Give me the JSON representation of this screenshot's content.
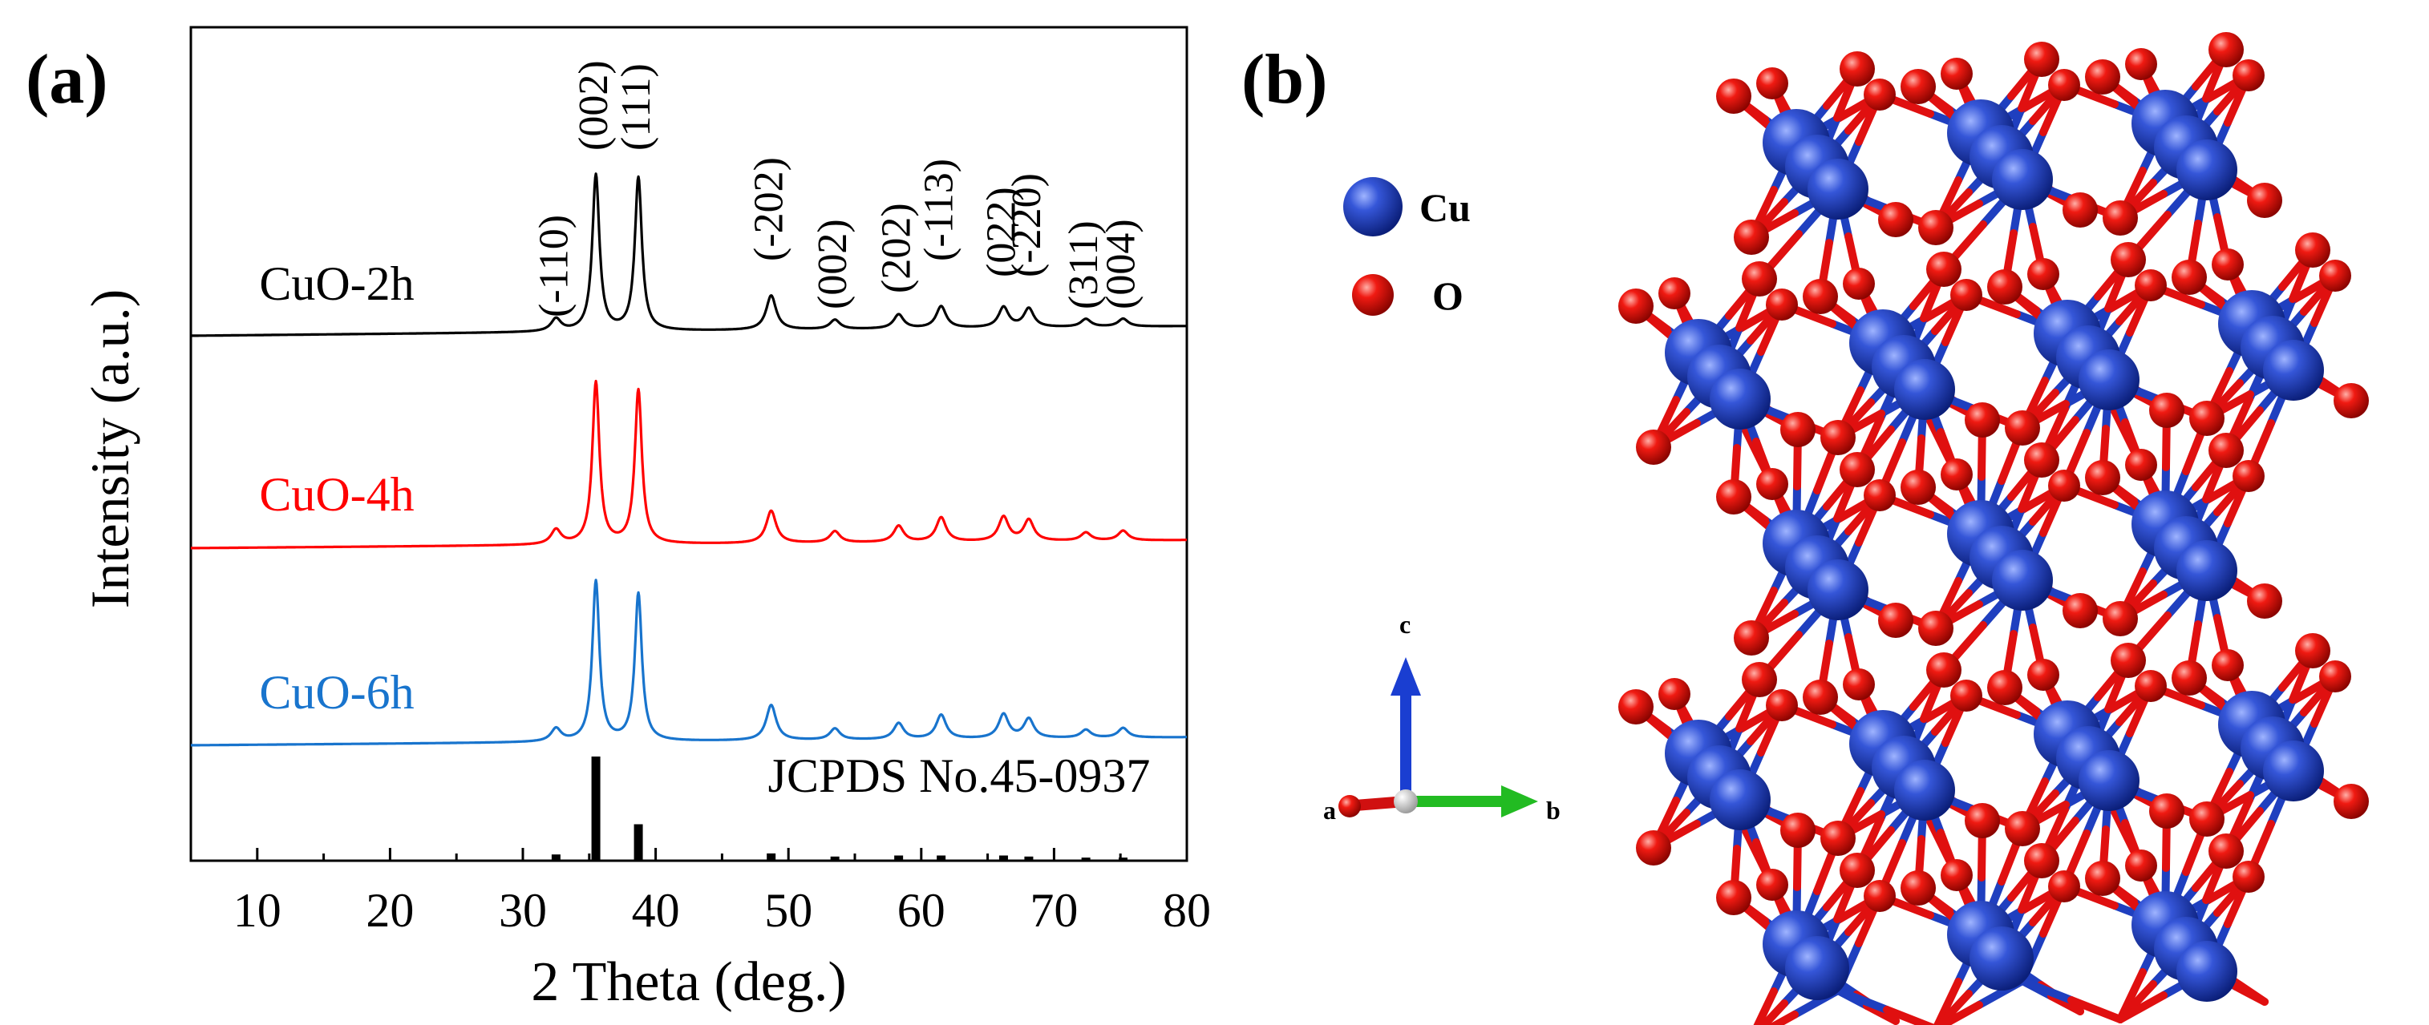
{
  "panels": {
    "a_label": "(a)",
    "b_label": "(b)"
  },
  "chart_data": {
    "type": "line",
    "title": "",
    "xlabel": "2 Theta (deg.)",
    "ylabel": "Intensity (a.u.)",
    "xlim": [
      5,
      80
    ],
    "xticks": [
      10,
      20,
      30,
      40,
      50,
      60,
      70,
      80
    ],
    "grid": false,
    "series": [
      {
        "name": "CuO-2h",
        "color": "#000000",
        "peaks": [
          {
            "x": 32.5,
            "h": 0.08
          },
          {
            "x": 35.5,
            "h": 1.0
          },
          {
            "x": 38.7,
            "h": 0.98
          },
          {
            "x": 48.7,
            "h": 0.22
          },
          {
            "x": 53.5,
            "h": 0.06
          },
          {
            "x": 58.3,
            "h": 0.09
          },
          {
            "x": 61.5,
            "h": 0.14
          },
          {
            "x": 66.2,
            "h": 0.13
          },
          {
            "x": 68.1,
            "h": 0.12
          },
          {
            "x": 72.4,
            "h": 0.05
          },
          {
            "x": 75.2,
            "h": 0.05
          }
        ]
      },
      {
        "name": "CuO-4h",
        "color": "#ff0000",
        "peaks": [
          {
            "x": 32.5,
            "h": 0.09
          },
          {
            "x": 35.5,
            "h": 1.0
          },
          {
            "x": 38.7,
            "h": 0.95
          },
          {
            "x": 48.7,
            "h": 0.2
          },
          {
            "x": 53.5,
            "h": 0.07
          },
          {
            "x": 58.3,
            "h": 0.1
          },
          {
            "x": 61.5,
            "h": 0.15
          },
          {
            "x": 66.2,
            "h": 0.15
          },
          {
            "x": 68.1,
            "h": 0.13
          },
          {
            "x": 72.4,
            "h": 0.05
          },
          {
            "x": 75.2,
            "h": 0.06
          }
        ]
      },
      {
        "name": "CuO-6h",
        "color": "#1874cd",
        "peaks": [
          {
            "x": 32.5,
            "h": 0.08
          },
          {
            "x": 35.5,
            "h": 1.0
          },
          {
            "x": 38.7,
            "h": 0.92
          },
          {
            "x": 48.7,
            "h": 0.22
          },
          {
            "x": 53.5,
            "h": 0.07
          },
          {
            "x": 58.3,
            "h": 0.1
          },
          {
            "x": 61.5,
            "h": 0.15
          },
          {
            "x": 66.2,
            "h": 0.15
          },
          {
            "x": 68.1,
            "h": 0.12
          },
          {
            "x": 72.4,
            "h": 0.05
          },
          {
            "x": 75.2,
            "h": 0.06
          }
        ]
      }
    ],
    "reference": {
      "name": "JCPDS No.45-0937",
      "lines": [
        {
          "x": 32.5,
          "h": 0.06
        },
        {
          "x": 35.5,
          "h": 1.0
        },
        {
          "x": 38.7,
          "h": 0.35
        },
        {
          "x": 48.7,
          "h": 0.07
        },
        {
          "x": 53.5,
          "h": 0.04
        },
        {
          "x": 58.3,
          "h": 0.05
        },
        {
          "x": 61.5,
          "h": 0.05
        },
        {
          "x": 66.2,
          "h": 0.05
        },
        {
          "x": 68.1,
          "h": 0.04
        },
        {
          "x": 72.4,
          "h": 0.03
        },
        {
          "x": 75.2,
          "h": 0.03
        }
      ]
    },
    "annotations": [
      {
        "text": "(-110)",
        "x": 32.5
      },
      {
        "text": "(002)",
        "x": 35.5
      },
      {
        "text": "(111)",
        "x": 38.7
      },
      {
        "text": "(-202)",
        "x": 48.7
      },
      {
        "text": "(002)",
        "x": 53.5
      },
      {
        "text": "(202)",
        "x": 58.3
      },
      {
        "text": "(-113)",
        "x": 61.5
      },
      {
        "text": "(022)",
        "x": 66.2
      },
      {
        "text": "(-220)",
        "x": 68.1
      },
      {
        "text": "(311)",
        "x": 72.4
      },
      {
        "text": "(004)",
        "x": 75.2
      }
    ]
  },
  "structure": {
    "legend": [
      {
        "label": "Cu",
        "color": "#1f3fbf"
      },
      {
        "label": "O",
        "color": "#e01010"
      }
    ],
    "axes": [
      {
        "label": "c",
        "color": "#1a3ed1"
      },
      {
        "label": "a",
        "color": "#d01010"
      },
      {
        "label": "b",
        "color": "#22bb22"
      }
    ]
  }
}
